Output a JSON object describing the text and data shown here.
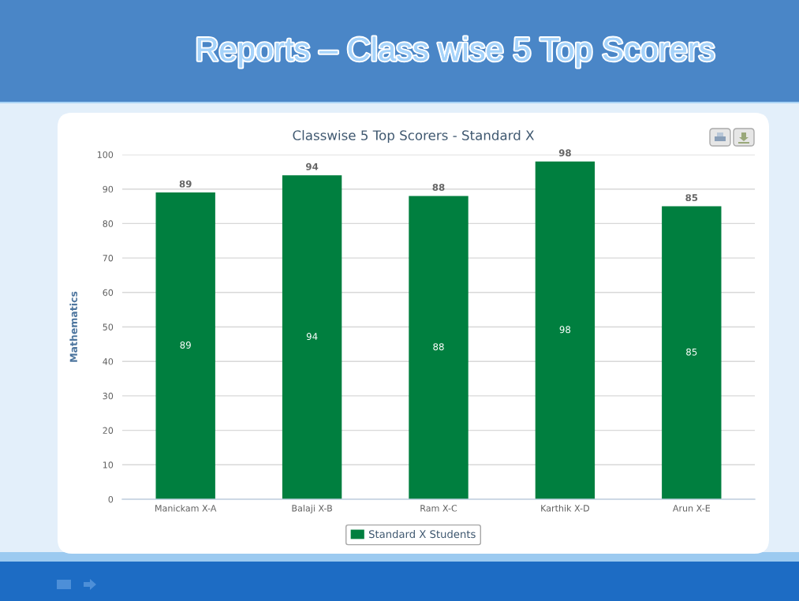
{
  "chart_data": {
    "type": "bar",
    "title": "Reports – Class wise 5 Top Scorers",
    "subtitle": "Classwise 5 Top Scorers - Standard X",
    "ylabel": "Mathematics",
    "categories": [
      "Manickam X-A",
      "Balaji X-B",
      "Ram X-C",
      "Karthik X-D",
      "Arun X-E"
    ],
    "series": [
      {
        "name": "Standard X Students",
        "color": "#007f3f",
        "values": [
          89,
          94,
          88,
          98,
          85
        ]
      }
    ],
    "annotations": [
      "89",
      "94",
      "88",
      "98",
      "85"
    ],
    "ylim": [
      0,
      100
    ],
    "yticks": [
      0,
      10,
      20,
      30,
      40,
      50,
      60,
      70,
      80,
      90,
      100
    ],
    "grid": "y",
    "legend": "bottom",
    "data_labels": true
  }
}
